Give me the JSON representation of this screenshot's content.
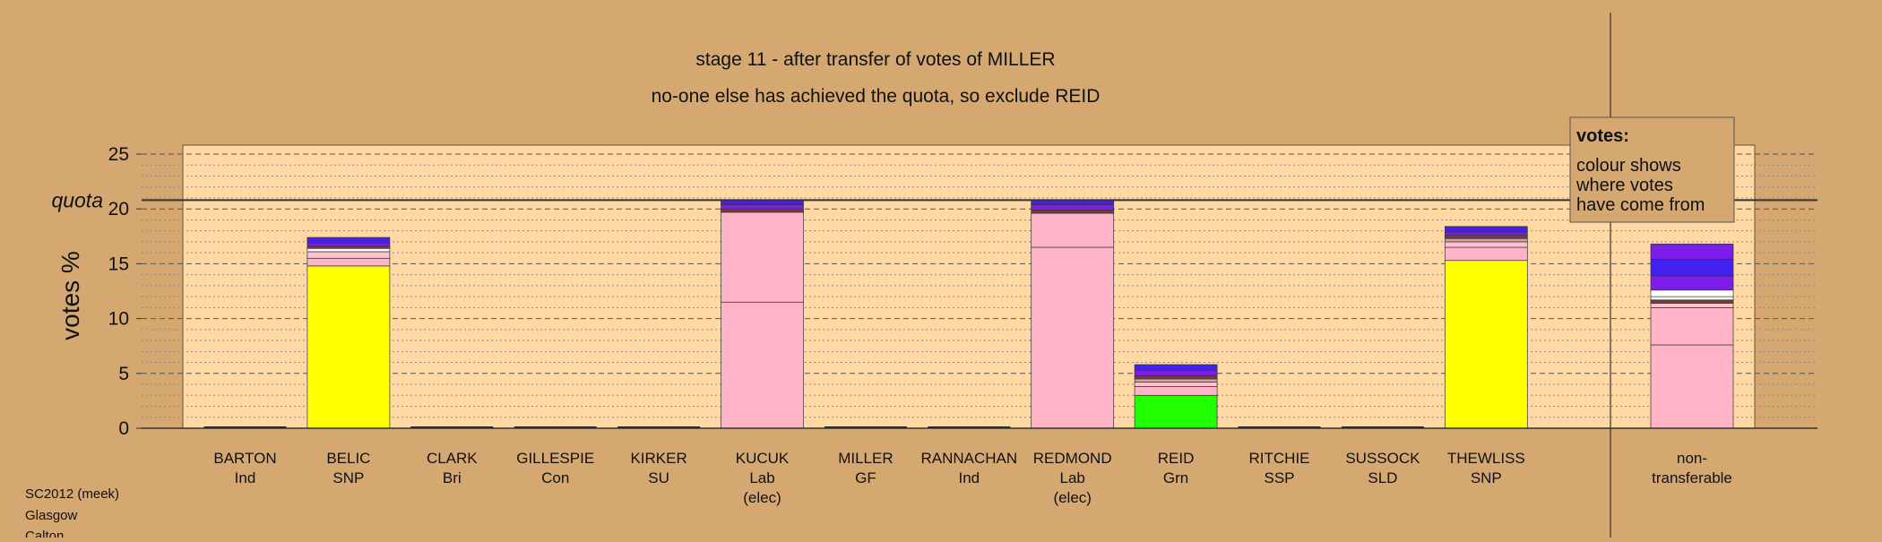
{
  "chart_data": {
    "type": "bar",
    "title": "stage 11 - after transfer of votes of MILLER",
    "subtitle": "no-one else has achieved the quota, so exclude REID",
    "ylabel": "votes %",
    "ylim": [
      0,
      25
    ],
    "yticks": [
      0,
      5,
      10,
      15,
      20,
      25
    ],
    "quota": 20.8,
    "quota_label": "quota",
    "grid": true,
    "legend": {
      "title": "votes:",
      "lines": [
        "colour shows",
        "where votes",
        "have come from"
      ],
      "placement": "top-right"
    },
    "footer": [
      "SC2012 (meek)",
      "Glasgow",
      "Calton"
    ],
    "colors": {
      "plot_bg": "#ffd8a4",
      "page_bg": "#d5a872",
      "SNP": "#ffff00",
      "Lab": "#ffb3c6",
      "Grn": "#22ff00",
      "transfer_purple": "#7c1ee8",
      "transfer_blue": "#4422ee",
      "transfer_white": "#ffffff"
    },
    "candidates": [
      {
        "name": "BARTON",
        "party": "Ind",
        "note": "",
        "segments": []
      },
      {
        "name": "BELIC",
        "party": "SNP",
        "note": "",
        "segments": [
          {
            "value": 14.8,
            "color": "#ffff00"
          },
          {
            "value": 0.7,
            "color": "#ffb3c6"
          },
          {
            "value": 0.6,
            "color": "#ffc0cb"
          },
          {
            "value": 0.3,
            "color": "#ffffff"
          },
          {
            "value": 0.2,
            "color": "#7a3a3a"
          },
          {
            "value": 0.3,
            "color": "#7c1ee8"
          },
          {
            "value": 0.5,
            "color": "#4422ee"
          }
        ]
      },
      {
        "name": "CLARK",
        "party": "Bri",
        "note": "",
        "segments": []
      },
      {
        "name": "GILLESPIE",
        "party": "Con",
        "note": "",
        "segments": []
      },
      {
        "name": "KIRKER",
        "party": "SU",
        "note": "",
        "segments": []
      },
      {
        "name": "KUCUK",
        "party": "Lab",
        "note": "(elec)",
        "segments": [
          {
            "value": 11.5,
            "color": "#ffb3c6"
          },
          {
            "value": 8.2,
            "color": "#ffb3c6"
          },
          {
            "value": 0.3,
            "color": "#7a3a3a"
          },
          {
            "value": 0.4,
            "color": "#7c1ee8"
          },
          {
            "value": 0.4,
            "color": "#4422ee"
          }
        ]
      },
      {
        "name": "MILLER",
        "party": "GF",
        "note": "",
        "segments": []
      },
      {
        "name": "RANNACHAN",
        "party": "Ind",
        "note": "",
        "segments": []
      },
      {
        "name": "REDMOND",
        "party": "Lab",
        "note": "(elec)",
        "segments": [
          {
            "value": 16.5,
            "color": "#ffb3c6"
          },
          {
            "value": 3.1,
            "color": "#ffb3c6"
          },
          {
            "value": 0.3,
            "color": "#7a3a3a"
          },
          {
            "value": 0.5,
            "color": "#7c1ee8"
          },
          {
            "value": 0.4,
            "color": "#4422ee"
          }
        ]
      },
      {
        "name": "REID",
        "party": "Grn",
        "note": "",
        "segments": [
          {
            "value": 3.0,
            "color": "#22ff00"
          },
          {
            "value": 0.8,
            "color": "#ffb3c6"
          },
          {
            "value": 0.4,
            "color": "#ffc0cb"
          },
          {
            "value": 0.3,
            "color": "#d9a0a0"
          },
          {
            "value": 0.3,
            "color": "#7a3a3a"
          },
          {
            "value": 0.5,
            "color": "#7c1ee8"
          },
          {
            "value": 0.5,
            "color": "#4422ee"
          }
        ]
      },
      {
        "name": "RITCHIE",
        "party": "SSP",
        "note": "",
        "segments": []
      },
      {
        "name": "SUSSOCK",
        "party": "SLD",
        "note": "",
        "segments": []
      },
      {
        "name": "THEWLISS",
        "party": "SNP",
        "note": "",
        "segments": [
          {
            "value": 15.3,
            "color": "#ffff00"
          },
          {
            "value": 1.2,
            "color": "#ffb3c6"
          },
          {
            "value": 0.5,
            "color": "#ffc0cb"
          },
          {
            "value": 0.3,
            "color": "#d9a0a0"
          },
          {
            "value": 0.3,
            "color": "#7a3a3a"
          },
          {
            "value": 0.3,
            "color": "#7c1ee8"
          },
          {
            "value": 0.5,
            "color": "#4422ee"
          }
        ]
      },
      {
        "name": "non-",
        "party": "transferable",
        "note": "",
        "segments": [
          {
            "value": 7.6,
            "color": "#ffb3c6"
          },
          {
            "value": 3.4,
            "color": "#ffb3c6"
          },
          {
            "value": 0.4,
            "color": "#ffc0cb"
          },
          {
            "value": 0.3,
            "color": "#7a3a3a"
          },
          {
            "value": 0.3,
            "color": "#ffffff"
          },
          {
            "value": 0.6,
            "color": "#ffffff"
          },
          {
            "value": 1.3,
            "color": "#7c1ee8"
          },
          {
            "value": 1.5,
            "color": "#4422ee"
          },
          {
            "value": 1.4,
            "color": "#7c1ee8"
          }
        ]
      }
    ]
  }
}
